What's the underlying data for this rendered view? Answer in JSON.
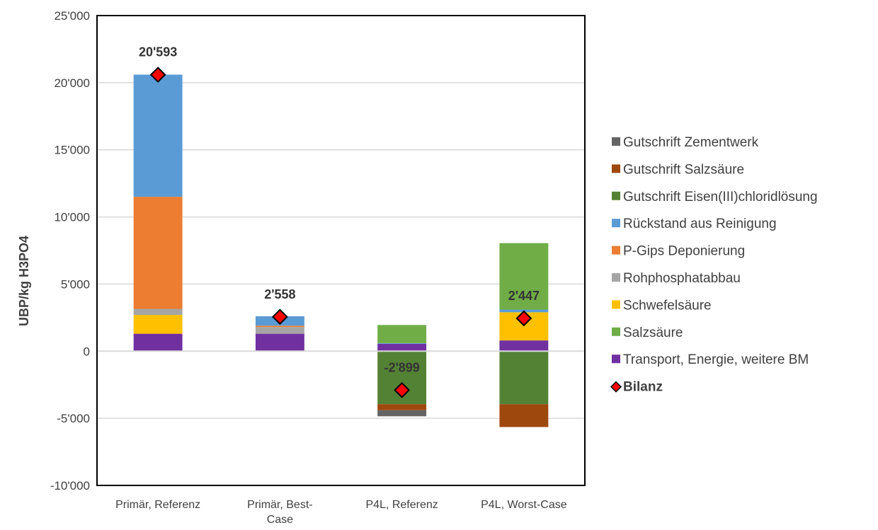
{
  "chart_data": {
    "type": "bar",
    "stacked": true,
    "title": "",
    "xlabel": "",
    "ylabel": "UBP/kg H3PO4",
    "ylim": [
      -10000,
      25000
    ],
    "yticks": [
      -10000,
      -5000,
      0,
      5000,
      10000,
      15000,
      20000,
      25000
    ],
    "ytick_labels": [
      "-10'000",
      "-5'000",
      "0",
      "5'000",
      "10'000",
      "15'000",
      "20'000",
      "25'000"
    ],
    "grid": true,
    "legend_position": "right",
    "categories": [
      [
        "Primär, Referenz"
      ],
      [
        "Primär, Best-",
        "Case"
      ],
      [
        "P4L, Referenz"
      ],
      [
        "P4L, Worst-Case"
      ]
    ],
    "series": [
      {
        "name": "Transport, Energie, weitere BM",
        "color": "#7030A0",
        "values": [
          1300,
          1300,
          550,
          800
        ]
      },
      {
        "name": "Schwefelsäure",
        "color": "#FFC000",
        "values": [
          1400,
          0,
          0,
          2100
        ]
      },
      {
        "name": "Rohphosphatabbau",
        "color": "#A5A5A5",
        "values": [
          450,
          500,
          0,
          0
        ]
      },
      {
        "name": "P-Gips Deponierung",
        "color": "#ED7D31",
        "values": [
          8350,
          100,
          0,
          0
        ]
      },
      {
        "name": "Rückstand aus Reinigung",
        "color": "#5B9BD5",
        "values": [
          9100,
          700,
          50,
          200
        ]
      },
      {
        "name": "Salzsäure",
        "color": "#70AD47",
        "values": [
          0,
          0,
          1350,
          4950
        ]
      },
      {
        "name": "Gutschrift Eisen(III)chloridlösung",
        "color": "#548235",
        "values": [
          0,
          0,
          -3950,
          -3950
        ]
      },
      {
        "name": "Gutschrift Salzsäure",
        "color": "#9E480E",
        "values": [
          0,
          0,
          -450,
          -1700
        ]
      },
      {
        "name": "Gutschrift Zementwerk",
        "color": "#636363",
        "values": [
          0,
          0,
          -450,
          0
        ]
      }
    ],
    "balance": {
      "name": "Bilanz",
      "color": "#FF0000",
      "values": [
        20593,
        2558,
        -2899,
        2447
      ],
      "labels": [
        "20'593",
        "2'558",
        "-2'899",
        "2'447"
      ]
    },
    "legend_order": [
      "Gutschrift Zementwerk",
      "Gutschrift Salzsäure",
      "Gutschrift Eisen(III)chloridlösung",
      "Rückstand aus Reinigung",
      "P-Gips Deponierung",
      "Rohphosphatabbau",
      "Schwefelsäure",
      "Salzsäure",
      "Transport, Energie, weitere BM"
    ]
  }
}
